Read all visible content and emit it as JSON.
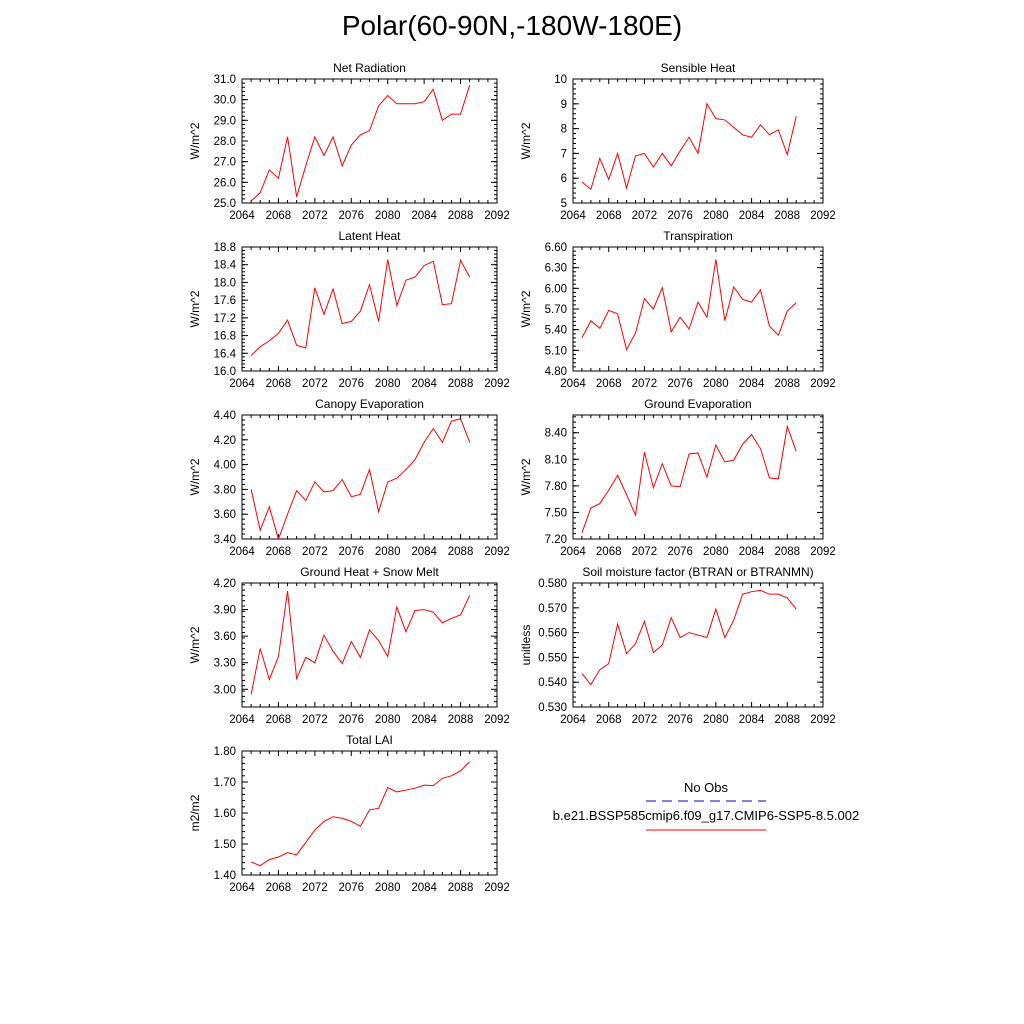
{
  "page": {
    "title": "Polar(60-90N,-180W-180E)"
  },
  "colors": {
    "model_line": "#ff0000",
    "obs_line": "#0000cc",
    "axis": "#000000"
  },
  "legend": {
    "obs_label": "No Obs",
    "model_label": "b.e21.BSSP585cmip6.f09_g17.CMIP6-SSP5-8.5.002"
  },
  "chart_data": [
    {
      "type": "line",
      "title": "Net Radiation",
      "ylabel": "W/m^2",
      "xlim": [
        2064,
        2092
      ],
      "xticks": [
        2064,
        2068,
        2072,
        2076,
        2080,
        2084,
        2088,
        2092
      ],
      "ylim": [
        25.0,
        31.0
      ],
      "yticks": [
        25.0,
        26.0,
        27.0,
        28.0,
        29.0,
        30.0,
        31.0
      ],
      "ytick_labels": [
        "25.0",
        "26.0",
        "27.0",
        "28.0",
        "29.0",
        "30.0",
        "31.0"
      ],
      "x": [
        2065,
        2066,
        2067,
        2068,
        2069,
        2070,
        2071,
        2072,
        2073,
        2074,
        2075,
        2076,
        2077,
        2078,
        2079,
        2080,
        2081,
        2082,
        2083,
        2084,
        2085,
        2086,
        2087,
        2088,
        2089
      ],
      "series": [
        {
          "values": [
            25.1,
            25.5,
            26.6,
            26.2,
            28.2,
            25.3,
            26.8,
            28.2,
            27.3,
            28.2,
            26.8,
            27.8,
            28.3,
            28.5,
            29.7,
            30.2,
            29.8,
            29.8,
            29.8,
            29.9,
            30.5,
            29.0,
            29.3,
            29.3,
            30.7
          ]
        }
      ]
    },
    {
      "type": "line",
      "title": "Sensible Heat",
      "ylabel": "W/m^2",
      "xlim": [
        2064,
        2092
      ],
      "xticks": [
        2064,
        2068,
        2072,
        2076,
        2080,
        2084,
        2088,
        2092
      ],
      "ylim": [
        5,
        10
      ],
      "yticks": [
        5,
        6,
        7,
        8,
        9,
        10
      ],
      "ytick_labels": [
        "5",
        "6",
        "7",
        "8",
        "9",
        "10"
      ],
      "x": [
        2065,
        2066,
        2067,
        2068,
        2069,
        2070,
        2071,
        2072,
        2073,
        2074,
        2075,
        2076,
        2077,
        2078,
        2079,
        2080,
        2081,
        2082,
        2083,
        2084,
        2085,
        2086,
        2087,
        2088,
        2089
      ],
      "series": [
        {
          "values": [
            5.85,
            5.55,
            6.8,
            5.95,
            7.0,
            5.6,
            6.9,
            7.0,
            6.45,
            7.0,
            6.5,
            7.1,
            7.65,
            7.0,
            9.0,
            8.4,
            8.35,
            8.05,
            7.75,
            7.65,
            8.15,
            7.75,
            7.95,
            6.95,
            8.5
          ]
        }
      ]
    },
    {
      "type": "line",
      "title": "Latent Heat",
      "ylabel": "W/m^2",
      "xlim": [
        2064,
        2092
      ],
      "xticks": [
        2064,
        2068,
        2072,
        2076,
        2080,
        2084,
        2088,
        2092
      ],
      "ylim": [
        16.0,
        18.8
      ],
      "yticks": [
        16.0,
        16.4,
        16.8,
        17.2,
        17.6,
        18.0,
        18.4,
        18.8
      ],
      "ytick_labels": [
        "16.0",
        "16.4",
        "16.8",
        "17.2",
        "17.6",
        "18.0",
        "18.4",
        "18.8"
      ],
      "x": [
        2065,
        2066,
        2067,
        2068,
        2069,
        2070,
        2071,
        2072,
        2073,
        2074,
        2075,
        2076,
        2077,
        2078,
        2079,
        2080,
        2081,
        2082,
        2083,
        2084,
        2085,
        2086,
        2087,
        2088,
        2089
      ],
      "series": [
        {
          "values": [
            16.35,
            16.55,
            16.68,
            16.85,
            17.15,
            16.58,
            16.52,
            17.88,
            17.28,
            17.85,
            17.07,
            17.12,
            17.35,
            17.95,
            17.12,
            18.52,
            17.48,
            18.05,
            18.12,
            18.38,
            18.48,
            17.5,
            17.52,
            18.5,
            18.12
          ]
        }
      ]
    },
    {
      "type": "line",
      "title": "Transpiration",
      "ylabel": "W/m^2",
      "xlim": [
        2064,
        2092
      ],
      "xticks": [
        2064,
        2068,
        2072,
        2076,
        2080,
        2084,
        2088,
        2092
      ],
      "ylim": [
        4.8,
        6.6
      ],
      "yticks": [
        4.8,
        5.1,
        5.4,
        5.7,
        6.0,
        6.3,
        6.6
      ],
      "ytick_labels": [
        "4.80",
        "5.10",
        "5.40",
        "5.70",
        "6.00",
        "6.30",
        "6.60"
      ],
      "x": [
        2065,
        2066,
        2067,
        2068,
        2069,
        2070,
        2071,
        2072,
        2073,
        2074,
        2075,
        2076,
        2077,
        2078,
        2079,
        2080,
        2081,
        2082,
        2083,
        2084,
        2085,
        2086,
        2087,
        2088,
        2089
      ],
      "series": [
        {
          "values": [
            5.28,
            5.53,
            5.42,
            5.68,
            5.63,
            5.11,
            5.35,
            5.85,
            5.7,
            6.01,
            5.37,
            5.58,
            5.41,
            5.8,
            5.58,
            6.42,
            5.53,
            6.02,
            5.84,
            5.8,
            5.98,
            5.45,
            5.32,
            5.67,
            5.79
          ]
        }
      ]
    },
    {
      "type": "line",
      "title": "Canopy Evaporation",
      "ylabel": "W/m^2",
      "xlim": [
        2064,
        2092
      ],
      "xticks": [
        2064,
        2068,
        2072,
        2076,
        2080,
        2084,
        2088,
        2092
      ],
      "ylim": [
        3.4,
        4.4
      ],
      "yticks": [
        3.4,
        3.6,
        3.8,
        4.0,
        4.2,
        4.4
      ],
      "ytick_labels": [
        "3.40",
        "3.60",
        "3.80",
        "4.00",
        "4.20",
        "4.40"
      ],
      "x": [
        2065,
        2066,
        2067,
        2068,
        2069,
        2070,
        2071,
        2072,
        2073,
        2074,
        2075,
        2076,
        2077,
        2078,
        2079,
        2080,
        2081,
        2082,
        2083,
        2084,
        2085,
        2086,
        2087,
        2088,
        2089
      ],
      "series": [
        {
          "values": [
            3.8,
            3.47,
            3.66,
            3.4,
            3.6,
            3.79,
            3.71,
            3.86,
            3.78,
            3.79,
            3.88,
            3.74,
            3.76,
            3.96,
            3.62,
            3.86,
            3.89,
            3.96,
            4.04,
            4.18,
            4.29,
            4.18,
            4.35,
            4.37,
            4.18
          ]
        }
      ]
    },
    {
      "type": "line",
      "title": "Ground Evaporation",
      "ylabel": "W/m^2",
      "xlim": [
        2064,
        2092
      ],
      "xticks": [
        2064,
        2068,
        2072,
        2076,
        2080,
        2084,
        2088,
        2092
      ],
      "ylim": [
        7.2,
        8.6
      ],
      "yticks": [
        7.2,
        7.5,
        7.8,
        8.1,
        8.4
      ],
      "ytick_labels": [
        "7.20",
        "7.50",
        "7.80",
        "8.10",
        "8.40"
      ],
      "x": [
        2065,
        2066,
        2067,
        2068,
        2069,
        2070,
        2071,
        2072,
        2073,
        2074,
        2075,
        2076,
        2077,
        2078,
        2079,
        2080,
        2081,
        2082,
        2083,
        2084,
        2085,
        2086,
        2087,
        2088,
        2089
      ],
      "series": [
        {
          "values": [
            7.27,
            7.55,
            7.6,
            7.75,
            7.92,
            7.7,
            7.47,
            8.18,
            7.78,
            8.05,
            7.8,
            7.79,
            8.16,
            8.17,
            7.9,
            8.26,
            8.07,
            8.09,
            8.27,
            8.38,
            8.22,
            7.89,
            7.88,
            8.47,
            8.19
          ]
        }
      ]
    },
    {
      "type": "line",
      "title": "Ground Heat + Snow Melt",
      "ylabel": "W/m^2",
      "xlim": [
        2064,
        2092
      ],
      "xticks": [
        2064,
        2068,
        2072,
        2076,
        2080,
        2084,
        2088,
        2092
      ],
      "ylim": [
        2.8,
        4.2
      ],
      "yticks": [
        3.0,
        3.3,
        3.6,
        3.9,
        4.2
      ],
      "ytick_labels": [
        "3.00",
        "3.30",
        "3.60",
        "3.90",
        "4.20"
      ],
      "x": [
        2065,
        2066,
        2067,
        2068,
        2069,
        2070,
        2071,
        2072,
        2073,
        2074,
        2075,
        2076,
        2077,
        2078,
        2079,
        2080,
        2081,
        2082,
        2083,
        2084,
        2085,
        2086,
        2087,
        2088,
        2089
      ],
      "series": [
        {
          "values": [
            2.94,
            3.46,
            3.11,
            3.37,
            4.11,
            3.12,
            3.36,
            3.3,
            3.61,
            3.43,
            3.29,
            3.54,
            3.36,
            3.67,
            3.55,
            3.37,
            3.93,
            3.65,
            3.89,
            3.9,
            3.87,
            3.75,
            3.8,
            3.84,
            4.06
          ]
        }
      ]
    },
    {
      "type": "line",
      "title": "Soil moisture factor (BTRAN or BTRANMN)",
      "ylabel": "unitless",
      "xlim": [
        2064,
        2092
      ],
      "xticks": [
        2064,
        2068,
        2072,
        2076,
        2080,
        2084,
        2088,
        2092
      ],
      "ylim": [
        0.53,
        0.58
      ],
      "yticks": [
        0.53,
        0.54,
        0.55,
        0.56,
        0.57,
        0.58
      ],
      "ytick_labels": [
        "0.530",
        "0.540",
        "0.550",
        "0.560",
        "0.570",
        "0.580"
      ],
      "x": [
        2065,
        2066,
        2067,
        2068,
        2069,
        2070,
        2071,
        2072,
        2073,
        2074,
        2075,
        2076,
        2077,
        2078,
        2079,
        2080,
        2081,
        2082,
        2083,
        2084,
        2085,
        2086,
        2087,
        2088,
        2089
      ],
      "series": [
        {
          "values": [
            0.5435,
            0.539,
            0.545,
            0.5475,
            0.5635,
            0.5515,
            0.5555,
            0.5645,
            0.552,
            0.555,
            0.566,
            0.558,
            0.56,
            0.559,
            0.558,
            0.5695,
            0.558,
            0.565,
            0.5755,
            0.5765,
            0.577,
            0.5755,
            0.5755,
            0.574,
            0.5695
          ]
        }
      ]
    },
    {
      "type": "line",
      "title": "Total LAI",
      "ylabel": "m2/m2",
      "xlim": [
        2064,
        2092
      ],
      "xticks": [
        2064,
        2068,
        2072,
        2076,
        2080,
        2084,
        2088,
        2092
      ],
      "ylim": [
        1.4,
        1.8
      ],
      "yticks": [
        1.4,
        1.5,
        1.6,
        1.7,
        1.8
      ],
      "ytick_labels": [
        "1.40",
        "1.50",
        "1.60",
        "1.70",
        "1.80"
      ],
      "x": [
        2065,
        2066,
        2067,
        2068,
        2069,
        2070,
        2071,
        2072,
        2073,
        2074,
        2075,
        2076,
        2077,
        2078,
        2079,
        2080,
        2081,
        2082,
        2083,
        2084,
        2085,
        2086,
        2087,
        2088,
        2089
      ],
      "series": [
        {
          "values": [
            1.442,
            1.43,
            1.45,
            1.458,
            1.472,
            1.465,
            1.505,
            1.545,
            1.573,
            1.588,
            1.583,
            1.573,
            1.557,
            1.61,
            1.615,
            1.682,
            1.668,
            1.674,
            1.68,
            1.69,
            1.688,
            1.712,
            1.72,
            1.736,
            1.765
          ]
        }
      ]
    }
  ]
}
